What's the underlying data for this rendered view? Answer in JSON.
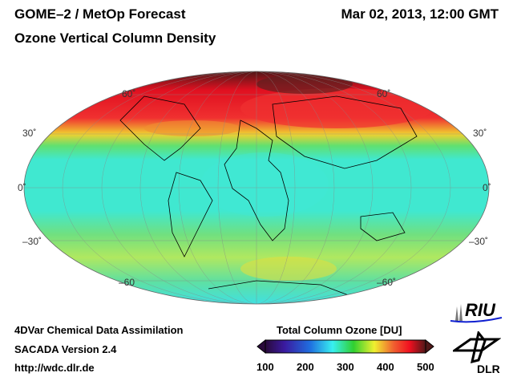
{
  "header": {
    "product": "GOME–2 / MetOp Forecast",
    "datetime": "Mar 02, 2013, 12:00 GMT",
    "quantity": "Ozone Vertical Column Density"
  },
  "map": {
    "lat_labels_left": [
      "60˚",
      "30˚",
      "0˚",
      "–30˚",
      "–60"
    ],
    "lat_labels_right": [
      "60˚",
      "30˚",
      "0˚",
      "–30˚",
      "–60˚"
    ]
  },
  "footer": {
    "line1": "4DVar Chemical Data Assimilation",
    "line2": "SACADA Version 2.4",
    "line3": "http://wdc.dlr.de"
  },
  "colorbar": {
    "title": "Total Column Ozone [DU]",
    "ticks": [
      "100",
      "200",
      "300",
      "400",
      "500"
    ],
    "colors": [
      "#2a0a3a",
      "#3a1aa0",
      "#1f6fe0",
      "#38f0f0",
      "#30d030",
      "#f0f030",
      "#f06030",
      "#f01020",
      "#501818"
    ]
  },
  "logos": {
    "riu": "RIU",
    "dlr": "DLR"
  }
}
